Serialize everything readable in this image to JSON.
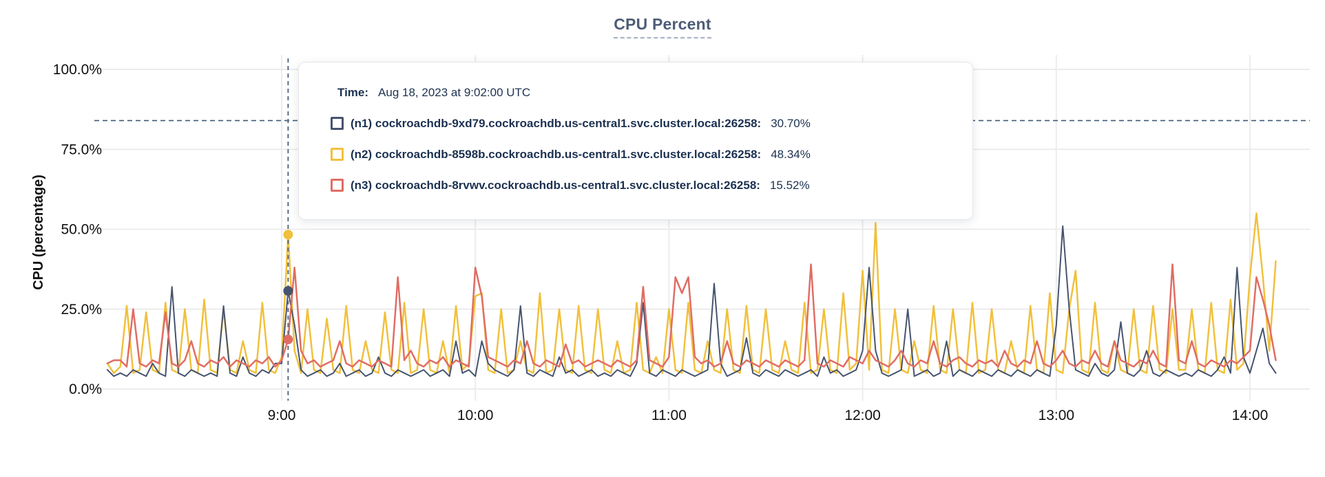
{
  "title": "CPU Percent",
  "colors": {
    "n1": "#46546F",
    "n2": "#F1C03C",
    "n3": "#E06D64",
    "text_navy": "#1C3150",
    "title_text": "#4E5D77",
    "gridline": "#ECECEC",
    "axis_text": "#111111",
    "threshold_line": "#3C5A77",
    "hover_line": "#5A6B80"
  },
  "tooltip": {
    "time_label": "Time:",
    "time_value": "Aug 18, 2023 at 9:02:00 UTC",
    "rows": [
      {
        "label": "(n1) cockroachdb-9xd79.cockroachdb.us-central1.svc.cluster.local:26258:",
        "value": "30.70%",
        "color": "#46546F"
      },
      {
        "label": "(n2) cockroachdb-8598b.cockroachdb.us-central1.svc.cluster.local:26258:",
        "value": "48.34%",
        "color": "#F1C03C"
      },
      {
        "label": "(n3) cockroachdb-8rvwv.cockroachdb.us-central1.svc.cluster.local:26258:",
        "value": "15.52%",
        "color": "#E06D64"
      }
    ]
  },
  "chart_data": {
    "type": "line",
    "title": "CPU Percent",
    "xlabel": "",
    "ylabel": "CPU (percentage)",
    "ylim": [
      0,
      100
    ],
    "grid": true,
    "y_ticks": [
      {
        "value": 0,
        "label": "0.0%"
      },
      {
        "value": 25,
        "label": "25.0%"
      },
      {
        "value": 50,
        "label": "50.0%"
      },
      {
        "value": 75,
        "label": "75.0%"
      },
      {
        "value": 100,
        "label": "100.0%"
      }
    ],
    "x_ticks": [
      {
        "minute": 540,
        "label": "9:00"
      },
      {
        "minute": 600,
        "label": "10:00"
      },
      {
        "minute": 660,
        "label": "11:00"
      },
      {
        "minute": 720,
        "label": "12:00"
      },
      {
        "minute": 780,
        "label": "13:00"
      },
      {
        "minute": 840,
        "label": "14:00"
      }
    ],
    "x_start_min": 486,
    "x_step_min": 2,
    "threshold_value": 84,
    "hover": {
      "index": 28,
      "minute": 542,
      "time": "9:02:00"
    },
    "series": [
      {
        "id": "n1",
        "name": "(n1) cockroachdb-9xd79.cockroachdb.us-central1.svc.cluster.local:26258",
        "color": "#46546F",
        "hover_value": 30.7,
        "values": [
          6,
          4,
          5,
          4,
          6,
          5,
          4,
          8,
          5,
          4,
          32,
          5,
          4,
          6,
          5,
          4,
          5,
          4,
          26,
          5,
          4,
          10,
          5,
          4,
          6,
          5,
          8,
          8,
          30.7,
          20,
          6,
          4,
          5,
          6,
          4,
          5,
          8,
          4,
          5,
          6,
          4,
          5,
          10,
          5,
          4,
          6,
          5,
          4,
          5,
          6,
          4,
          5,
          6,
          4,
          15,
          5,
          6,
          4,
          15,
          8,
          6,
          5,
          4,
          6,
          26,
          5,
          4,
          6,
          5,
          4,
          10,
          5,
          6,
          4,
          5,
          6,
          4,
          5,
          4,
          6,
          5,
          4,
          8,
          27,
          5,
          4,
          6,
          5,
          4,
          6,
          5,
          4,
          5,
          6,
          33,
          8,
          4,
          5,
          6,
          16,
          5,
          4,
          6,
          5,
          4,
          6,
          5,
          4,
          5,
          6,
          4,
          10,
          5,
          6,
          4,
          5,
          6,
          12,
          38,
          12,
          5,
          4,
          5,
          6,
          25,
          4,
          5,
          6,
          4,
          5,
          15,
          4,
          6,
          5,
          4,
          6,
          5,
          4,
          6,
          5,
          4,
          6,
          5,
          4,
          6,
          5,
          4,
          20,
          51,
          25,
          6,
          5,
          4,
          8,
          5,
          4,
          6,
          21,
          5,
          4,
          6,
          12,
          5,
          4,
          6,
          5,
          4,
          5,
          4,
          6,
          5,
          4,
          6,
          10,
          5,
          38,
          10,
          5,
          12,
          19,
          8,
          5
        ]
      },
      {
        "id": "n2",
        "name": "(n2) cockroachdb-8598b.cockroachdb.us-central1.svc.cluster.local:26258",
        "color": "#F1C03C",
        "hover_value": 48.34,
        "values": [
          8,
          5,
          7,
          26,
          5,
          6,
          24,
          6,
          5,
          27,
          6,
          5,
          25,
          6,
          5,
          28,
          6,
          5,
          25,
          6,
          5,
          15,
          6,
          5,
          27,
          6,
          5,
          10,
          48.3,
          12,
          5,
          25,
          6,
          5,
          22,
          6,
          5,
          26,
          6,
          5,
          15,
          6,
          5,
          24,
          6,
          5,
          27,
          5,
          6,
          25,
          6,
          5,
          15,
          5,
          26,
          6,
          8,
          29,
          30,
          6,
          5,
          25,
          5,
          6,
          15,
          6,
          5,
          30,
          5,
          6,
          25,
          6,
          5,
          26,
          6,
          5,
          25,
          6,
          5,
          15,
          5,
          6,
          27,
          6,
          5,
          10,
          5,
          25,
          6,
          5,
          27,
          6,
          5,
          15,
          6,
          5,
          25,
          6,
          5,
          26,
          6,
          5,
          25,
          6,
          5,
          15,
          6,
          5,
          27,
          5,
          6,
          25,
          6,
          5,
          30,
          6,
          8,
          37,
          6,
          52,
          6,
          5,
          25,
          6,
          5,
          15,
          6,
          5,
          26,
          6,
          5,
          25,
          6,
          5,
          27,
          5,
          6,
          25,
          6,
          5,
          15,
          6,
          5,
          26,
          6,
          5,
          30,
          6,
          5,
          25,
          37,
          6,
          5,
          27,
          6,
          5,
          15,
          6,
          5,
          25,
          6,
          5,
          26,
          6,
          5,
          25,
          6,
          6,
          25,
          6,
          5,
          27,
          6,
          5,
          28,
          6,
          8,
          35,
          55,
          35,
          12,
          40
        ]
      },
      {
        "id": "n3",
        "name": "(n3) cockroachdb-8rvwv.cockroachdb.us-central1.svc.cluster.local:26258",
        "color": "#E06D64",
        "hover_value": 15.52,
        "values": [
          8,
          9,
          9,
          7,
          25,
          8,
          7,
          9,
          8,
          24,
          8,
          7,
          9,
          15,
          8,
          7,
          9,
          8,
          10,
          7,
          9,
          8,
          7,
          9,
          8,
          10,
          7,
          9,
          15.5,
          38,
          12,
          8,
          9,
          7,
          8,
          9,
          15,
          8,
          7,
          9,
          8,
          7,
          9,
          8,
          7,
          35,
          9,
          12,
          8,
          7,
          9,
          8,
          10,
          7,
          9,
          8,
          7,
          38,
          29,
          10,
          9,
          8,
          7,
          9,
          8,
          15,
          8,
          7,
          9,
          8,
          7,
          14,
          8,
          9,
          7,
          8,
          9,
          8,
          7,
          9,
          8,
          7,
          9,
          32,
          9,
          8,
          7,
          10,
          35,
          30,
          35,
          10,
          8,
          9,
          7,
          8,
          15,
          8,
          7,
          9,
          8,
          7,
          9,
          8,
          7,
          9,
          8,
          7,
          9,
          39,
          8,
          7,
          9,
          8,
          7,
          10,
          9,
          8,
          12,
          9,
          8,
          7,
          9,
          12,
          8,
          7,
          9,
          8,
          15,
          8,
          7,
          9,
          10,
          8,
          7,
          9,
          8,
          9,
          7,
          12,
          8,
          7,
          9,
          8,
          15,
          8,
          7,
          9,
          12,
          8,
          7,
          9,
          8,
          12,
          8,
          7,
          15,
          9,
          8,
          7,
          9,
          8,
          12,
          8,
          7,
          39,
          9,
          8,
          15,
          8,
          7,
          9,
          8,
          7,
          9,
          8,
          10,
          12,
          35,
          28,
          20,
          9
        ]
      }
    ]
  }
}
